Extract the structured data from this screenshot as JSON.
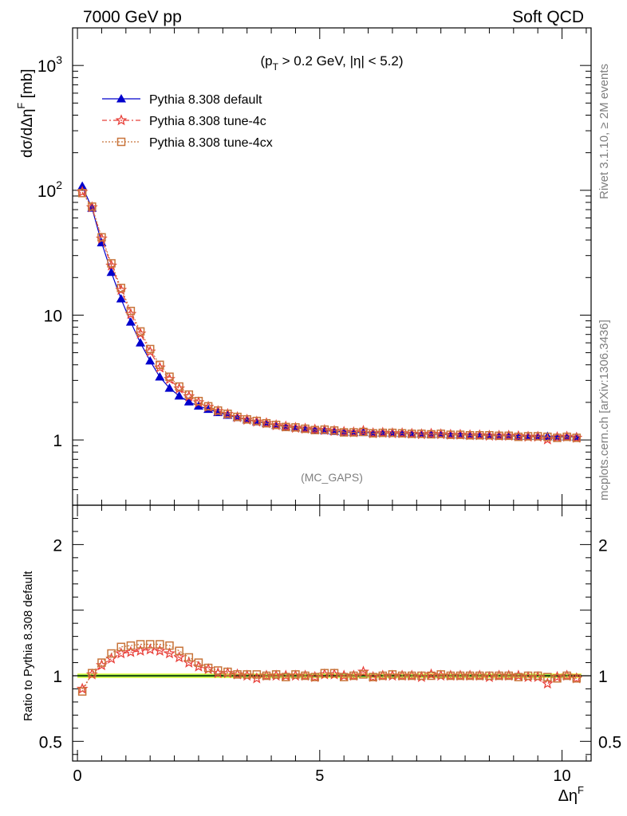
{
  "header": {
    "left_title": "7000 GeV pp",
    "right_title": "Soft QCD"
  },
  "side_labels": {
    "rivet": "Rivet 3.1.10, ≥ 2M events",
    "mcplots": "mcplots.cern.ch [arXiv:1306.3436]"
  },
  "chart_data": {
    "type": "line",
    "cut_label": "(p_T > 0.2 GeV, |η| < 5.2)",
    "analysis_label": "(MC_GAPS)",
    "xlabel": "Δη^F",
    "main_ylabel": "dσ/dΔη^F [mb]",
    "ratio_ylabel": "Ratio to Pythia 8.308 default",
    "xlim": [
      -0.1,
      10.6
    ],
    "main_ylim": [
      0.3,
      2000
    ],
    "main_yscale": "log",
    "ratio_ylim": [
      0.35,
      2.3
    ],
    "legend_placement": "top-left",
    "x_ticks": [
      "0",
      "5",
      "10"
    ],
    "main_y_ticks": [
      "10^3",
      "10^2",
      "10",
      "1"
    ],
    "ratio_y_ticks": [
      "2",
      "1",
      "0.5"
    ],
    "x": [
      0.1,
      0.3,
      0.5,
      0.7,
      0.9,
      1.1,
      1.3,
      1.5,
      1.7,
      1.9,
      2.1,
      2.3,
      2.5,
      2.7,
      2.9,
      3.1,
      3.3,
      3.5,
      3.7,
      3.9,
      4.1,
      4.3,
      4.5,
      4.7,
      4.9,
      5.1,
      5.3,
      5.5,
      5.7,
      5.9,
      6.1,
      6.3,
      6.5,
      6.7,
      6.9,
      7.1,
      7.3,
      7.5,
      7.7,
      7.9,
      8.1,
      8.3,
      8.5,
      8.7,
      8.9,
      9.1,
      9.3,
      9.5,
      9.7,
      9.9,
      10.1,
      10.3
    ],
    "series": [
      {
        "name": "Pythia 8.308 default",
        "color": "#0000cc",
        "marker": "triangle",
        "values": [
          108,
          72,
          38,
          22,
          13.5,
          8.8,
          6.0,
          4.3,
          3.2,
          2.6,
          2.25,
          2.02,
          1.87,
          1.76,
          1.66,
          1.58,
          1.51,
          1.45,
          1.4,
          1.36,
          1.31,
          1.28,
          1.25,
          1.23,
          1.21,
          1.19,
          1.17,
          1.16,
          1.15,
          1.15,
          1.14,
          1.14,
          1.13,
          1.13,
          1.12,
          1.12,
          1.11,
          1.11,
          1.1,
          1.1,
          1.09,
          1.09,
          1.09,
          1.08,
          1.08,
          1.07,
          1.07,
          1.07,
          1.07,
          1.06,
          1.06,
          1.06
        ],
        "ratio": [
          1,
          1,
          1,
          1,
          1,
          1,
          1,
          1,
          1,
          1,
          1,
          1,
          1,
          1,
          1,
          1,
          1,
          1,
          1,
          1,
          1,
          1,
          1,
          1,
          1,
          1,
          1,
          1,
          1,
          1,
          1,
          1,
          1,
          1,
          1,
          1,
          1,
          1,
          1,
          1,
          1,
          1,
          1,
          1,
          1,
          1,
          1,
          1,
          1,
          1,
          1,
          1
        ]
      },
      {
        "name": "Pythia 8.308 tune-4c",
        "color": "#e8403a",
        "marker": "star",
        "values": [
          97,
          73,
          41,
          24.9,
          15.9,
          10.2,
          7.1,
          5.1,
          3.8,
          3.07,
          2.58,
          2.23,
          2.0,
          1.84,
          1.7,
          1.61,
          1.52,
          1.45,
          1.4,
          1.36,
          1.31,
          1.28,
          1.25,
          1.23,
          1.21,
          1.2,
          1.18,
          1.16,
          1.15,
          1.18,
          1.13,
          1.14,
          1.13,
          1.13,
          1.12,
          1.11,
          1.12,
          1.11,
          1.1,
          1.1,
          1.09,
          1.09,
          1.08,
          1.08,
          1.08,
          1.07,
          1.06,
          1.06,
          1.01,
          1.05,
          1.06,
          1.04
        ],
        "ratio": [
          0.9,
          1.01,
          1.08,
          1.13,
          1.17,
          1.18,
          1.19,
          1.2,
          1.19,
          1.17,
          1.14,
          1.1,
          1.07,
          1.05,
          1.02,
          1.02,
          1.01,
          1.0,
          0.98,
          1.0,
          1.0,
          1.0,
          1.0,
          1.0,
          0.99,
          1.01,
          1.01,
          1.0,
          1.0,
          1.03,
          0.99,
          1.0,
          1.0,
          1.0,
          1.0,
          0.99,
          1.01,
          1.0,
          1.0,
          1.0,
          1.0,
          1.0,
          0.99,
          1.0,
          1.0,
          1.0,
          0.99,
          0.99,
          0.94,
          0.99,
          1.0,
          0.98
        ]
      },
      {
        "name": "Pythia 8.308 tune-4cx",
        "color": "#c8743a",
        "marker": "square",
        "values": [
          95,
          74,
          42,
          26.0,
          16.5,
          10.8,
          7.4,
          5.35,
          4.0,
          3.21,
          2.68,
          2.31,
          2.05,
          1.86,
          1.72,
          1.62,
          1.53,
          1.46,
          1.42,
          1.36,
          1.32,
          1.27,
          1.26,
          1.23,
          1.2,
          1.21,
          1.19,
          1.15,
          1.15,
          1.16,
          1.13,
          1.14,
          1.14,
          1.13,
          1.12,
          1.12,
          1.11,
          1.12,
          1.1,
          1.1,
          1.09,
          1.09,
          1.09,
          1.08,
          1.08,
          1.06,
          1.07,
          1.07,
          1.06,
          1.04,
          1.06,
          1.04
        ],
        "ratio": [
          0.88,
          1.02,
          1.1,
          1.17,
          1.22,
          1.23,
          1.24,
          1.24,
          1.24,
          1.23,
          1.19,
          1.14,
          1.1,
          1.06,
          1.04,
          1.03,
          1.01,
          1.01,
          1.01,
          1.0,
          1.01,
          0.99,
          1.01,
          1.0,
          0.99,
          1.02,
          1.02,
          0.99,
          1.0,
          1.01,
          0.99,
          1.0,
          1.01,
          1.0,
          1.0,
          1.0,
          1.0,
          1.01,
          1.0,
          1.0,
          1.0,
          1.0,
          1.0,
          1.0,
          1.0,
          0.99,
          1.0,
          1.0,
          0.99,
          0.98,
          1.0,
          0.98
        ]
      }
    ]
  }
}
